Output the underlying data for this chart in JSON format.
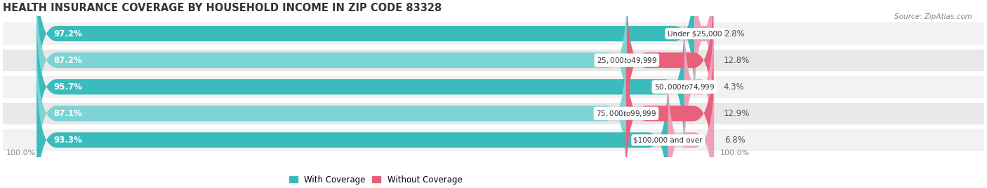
{
  "title": "HEALTH INSURANCE COVERAGE BY HOUSEHOLD INCOME IN ZIP CODE 83328",
  "source": "Source: ZipAtlas.com",
  "categories": [
    "Under $25,000",
    "$25,000 to $49,999",
    "$50,000 to $74,999",
    "$75,000 to $99,999",
    "$100,000 and over"
  ],
  "with_coverage": [
    97.2,
    87.2,
    95.7,
    87.1,
    93.3
  ],
  "without_coverage": [
    2.8,
    12.8,
    4.3,
    12.9,
    6.8
  ],
  "color_with_dark": "#3bbcbc",
  "color_with_light": "#7dd4d4",
  "color_without_dark": "#e8607a",
  "color_without_light": "#f0a0b8",
  "bar_bg": "#e0e0e0",
  "bar_height": 0.58,
  "title_fontsize": 10.5,
  "label_fontsize": 8.5,
  "legend_fontsize": 8.5,
  "axis_label_fontsize": 8,
  "background_color": "#ffffff",
  "row_bg_colors": [
    "#f5f5f5",
    "#ebebeb",
    "#f5f5f5",
    "#ebebeb",
    "#f5f5f5"
  ]
}
